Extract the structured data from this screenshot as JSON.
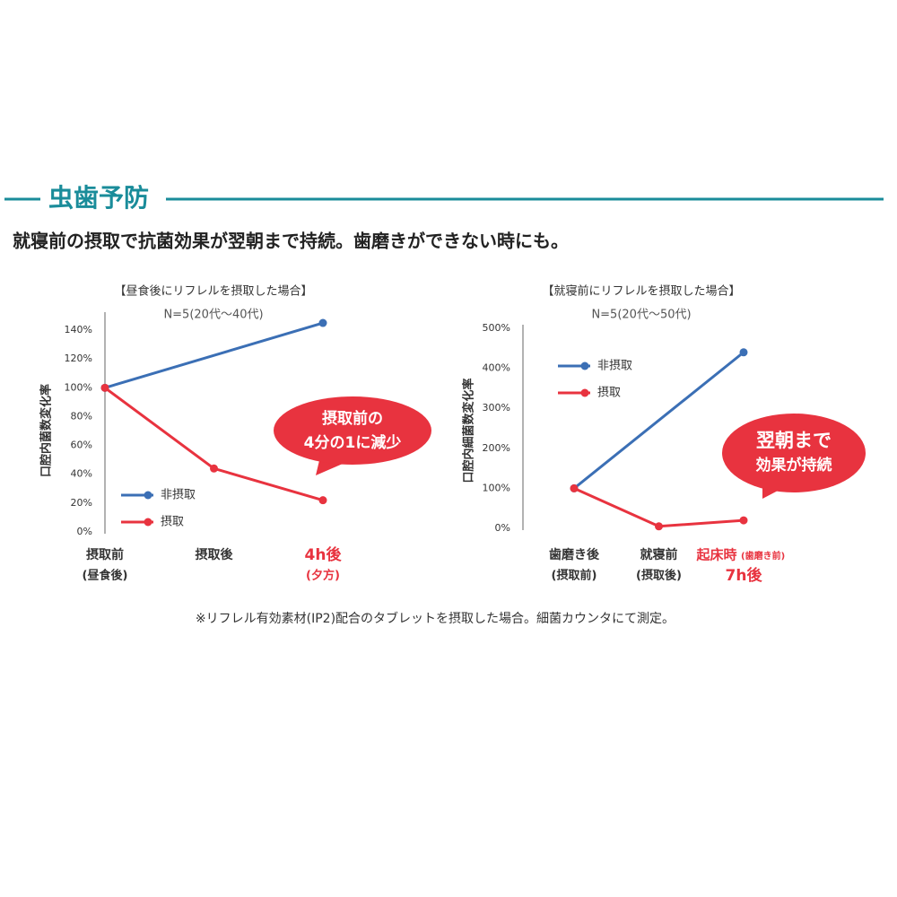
{
  "header": {
    "title": "虫歯予防",
    "subtitle": "就寝前の摂取で抗菌効果が翌朝まで持続。歯磨きができない時にも。"
  },
  "footnote": "※リフレル有効素材(IP2)配合のタブレットを摂取した場合。細菌カウンタにて測定。",
  "chart_data": [
    {
      "type": "line",
      "title": "【昼食後にリフレルを摂取した場合】",
      "subtitle": "N=5(20代〜40代)",
      "y_label": "口腔内菌数変化率",
      "categories": [
        "摂取前",
        "摂取後",
        "4h後"
      ],
      "category_notes": [
        "(昼食後)",
        null,
        "(夕方)"
      ],
      "highlight_category": 2,
      "ylim": [
        0,
        150
      ],
      "yticks": [
        {
          "value": 0,
          "label": "0%"
        },
        {
          "value": 20,
          "label": "20%"
        },
        {
          "value": 40,
          "label": "40%"
        },
        {
          "value": 60,
          "label": "60%"
        },
        {
          "value": 80,
          "label": "80%"
        },
        {
          "value": 100,
          "label": "100%"
        },
        {
          "value": 120,
          "label": "120%"
        },
        {
          "value": 140,
          "label": "140%"
        }
      ],
      "series": [
        {
          "name": "非摂取",
          "color": "#3b6fb5",
          "x": [
            0,
            2
          ],
          "values": [
            100,
            145
          ]
        },
        {
          "name": "摂取",
          "color": "#e8333f",
          "x": [
            0,
            1,
            2
          ],
          "values": [
            100,
            44,
            22
          ]
        }
      ],
      "legend": "lower-left",
      "callout": [
        "摂取前の",
        "4分の1に減少"
      ]
    },
    {
      "type": "line",
      "title": "【就寝前にリフレルを摂取した場合】",
      "subtitle": "N=5(20代〜50代)",
      "y_label": "口腔内細菌数変化率",
      "categories": [
        "歯磨き後",
        "就寝前",
        "起床時"
      ],
      "category_tags": [
        null,
        null,
        "(歯磨き前)"
      ],
      "category_notes": [
        "(摂取前)",
        "(摂取後)",
        "7h後"
      ],
      "highlight_category": 2,
      "ylim": [
        0,
        500
      ],
      "yticks": [
        {
          "value": 0,
          "label": "0%"
        },
        {
          "value": 100,
          "label": "100%"
        },
        {
          "value": 200,
          "label": "200%"
        },
        {
          "value": 300,
          "label": "300%"
        },
        {
          "value": 400,
          "label": "400%"
        },
        {
          "value": 500,
          "label": "500%"
        }
      ],
      "series": [
        {
          "name": "非摂取",
          "color": "#3b6fb5",
          "x": [
            0,
            2
          ],
          "values": [
            100,
            440
          ]
        },
        {
          "name": "摂取",
          "color": "#e8333f",
          "x": [
            0,
            1,
            2
          ],
          "values": [
            100,
            5,
            20
          ]
        }
      ],
      "legend": "upper-left",
      "callout": [
        "翌朝まで",
        "効果が持続"
      ]
    }
  ]
}
